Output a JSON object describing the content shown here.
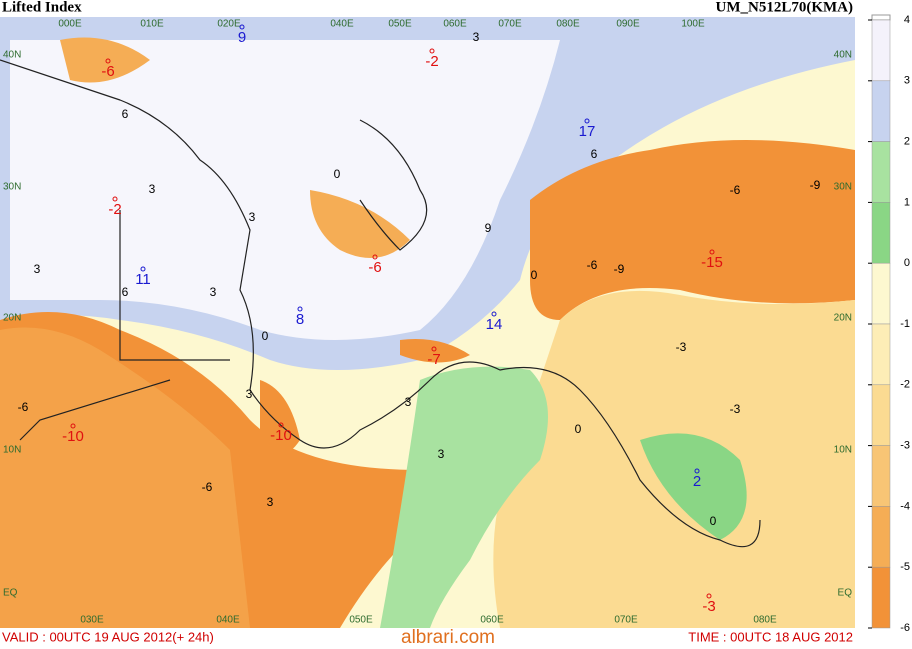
{
  "header": {
    "title": "Lifted Index",
    "model": "UM_N512L70(KMA)"
  },
  "footer": {
    "valid": "VALID : 00UTC 19 AUG 2012(+ 24h)",
    "watermark": "albrari.com",
    "time": "TIME : 00UTC 18 AUG 2012"
  },
  "colorbar": {
    "ticks": [
      4,
      3,
      2,
      1,
      0,
      -1,
      -2,
      -3,
      -4,
      -5,
      -6
    ],
    "colors": [
      "#f4f2fb",
      "#c7d3ef",
      "#a8e2a0",
      "#8ad685",
      "#fdf8d0",
      "#fdedb6",
      "#fbdb92",
      "#f8c575",
      "#f5ad55",
      "#f29238"
    ]
  },
  "map": {
    "lat_left": [
      "40N",
      "30N",
      "20N",
      "10N",
      "EQ"
    ],
    "lat_right": [
      "40N",
      "30N",
      "20N",
      "10N",
      "EQ"
    ],
    "lon_top": [
      "000E",
      "010E",
      "020E",
      "040E",
      "050E",
      "060E",
      "070E",
      "080E",
      "090E",
      "100E"
    ],
    "lon_bottom": [
      "030E",
      "040E",
      "050E",
      "060E",
      "070E",
      "080E"
    ],
    "maxima": [
      {
        "label": "-6",
        "color": "#e01010"
      },
      {
        "label": "-2",
        "color": "#e01010"
      },
      {
        "label": "-2",
        "color": "#e01010"
      },
      {
        "label": "-6",
        "color": "#e01010"
      },
      {
        "label": "-15",
        "color": "#e01010"
      },
      {
        "label": "-7",
        "color": "#e01010"
      },
      {
        "label": "-10",
        "color": "#e01010"
      },
      {
        "label": "-10",
        "color": "#e01010"
      },
      {
        "label": "-3",
        "color": "#e01010"
      },
      {
        "label": "9",
        "color": "#1a1ad0"
      },
      {
        "label": "17",
        "color": "#1a1ad0"
      },
      {
        "label": "11",
        "color": "#1a1ad0"
      },
      {
        "label": "8",
        "color": "#1a1ad0"
      },
      {
        "label": "14",
        "color": "#1a1ad0"
      },
      {
        "label": "2",
        "color": "#1a1ad0"
      }
    ],
    "contour_labels": [
      "6",
      "3",
      "3",
      "6",
      "3",
      "3",
      "0",
      "3",
      "0",
      "3",
      "9",
      "6",
      "0",
      "-6",
      "-9",
      "-6",
      "-9",
      "-3",
      "0",
      "3",
      "-6",
      "-6",
      "3",
      "-3",
      "0",
      "3"
    ]
  }
}
